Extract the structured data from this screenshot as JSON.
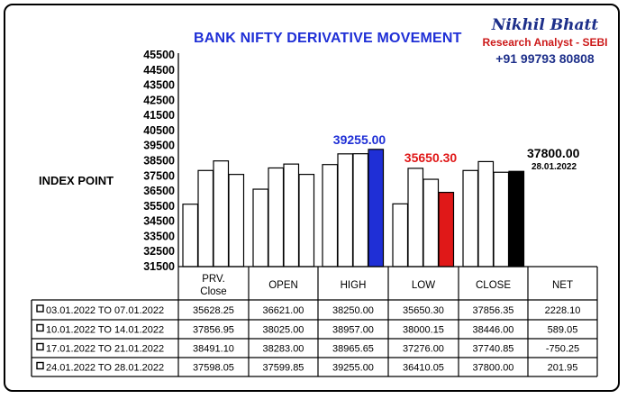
{
  "title": "BANK NIFTY DERIVATIVE MOVEMENT",
  "author": {
    "name": "Nikhil Bhatt",
    "role": "Research Analyst - SEBI",
    "phone": "+91 99793 80808"
  },
  "colors": {
    "title": "#1f2fd6",
    "high_highlight": "#1f2fd6",
    "low_highlight": "#e01818",
    "net_highlight": "#000000",
    "bar_default": "#ffffff"
  },
  "chart_data": {
    "type": "bar",
    "ylabel": "INDEX POINT",
    "ylim": [
      31500,
      45500
    ],
    "ytick_step": 1000,
    "yticks": [
      "45500",
      "44500",
      "43500",
      "42500",
      "41500",
      "40500",
      "39500",
      "38500",
      "37500",
      "36500",
      "35500",
      "34500",
      "33500",
      "32500",
      "31500"
    ],
    "categories": [
      "PRV. Close",
      "OPEN",
      "HIGH",
      "LOW",
      "CLOSE"
    ],
    "series": [
      {
        "name": "03.01.2022 TO 07.01.2022",
        "values": [
          35628.25,
          36621.0,
          38250.0,
          35650.3,
          37856.35
        ]
      },
      {
        "name": "10.01.2022 TO 14.01.2022",
        "values": [
          37856.95,
          38025.0,
          38957.0,
          38000.15,
          38446.0
        ]
      },
      {
        "name": "17.01.2022 TO 21.01.2022",
        "values": [
          38491.1,
          38283.0,
          38965.65,
          37276.0,
          37740.85
        ]
      },
      {
        "name": "24.01.2022 TO 28.01.2022",
        "values": [
          37598.05,
          37599.85,
          39255.0,
          36410.05,
          37800.0
        ]
      }
    ],
    "annotations": {
      "high": "39255.00",
      "low": "35650.30",
      "close": "37800.00",
      "close_date": "28.01.2022"
    },
    "table": {
      "headers": [
        "PRV. Close",
        "OPEN",
        "HIGH",
        "LOW",
        "CLOSE",
        "NET"
      ],
      "rows": [
        {
          "label": "03.01.2022 TO 07.01.2022",
          "cells": [
            "35628.25",
            "36621.00",
            "38250.00",
            "35650.30",
            "37856.35",
            "2228.10"
          ]
        },
        {
          "label": "10.01.2022 TO 14.01.2022",
          "cells": [
            "37856.95",
            "38025.00",
            "38957.00",
            "38000.15",
            "38446.00",
            "589.05"
          ]
        },
        {
          "label": "17.01.2022 TO 21.01.2022",
          "cells": [
            "38491.10",
            "38283.00",
            "38965.65",
            "37276.00",
            "37740.85",
            "-750.25"
          ]
        },
        {
          "label": "24.01.2022 TO 28.01.2022",
          "cells": [
            "37598.05",
            "37599.85",
            "39255.00",
            "36410.05",
            "37800.00",
            "201.95"
          ]
        }
      ]
    }
  }
}
